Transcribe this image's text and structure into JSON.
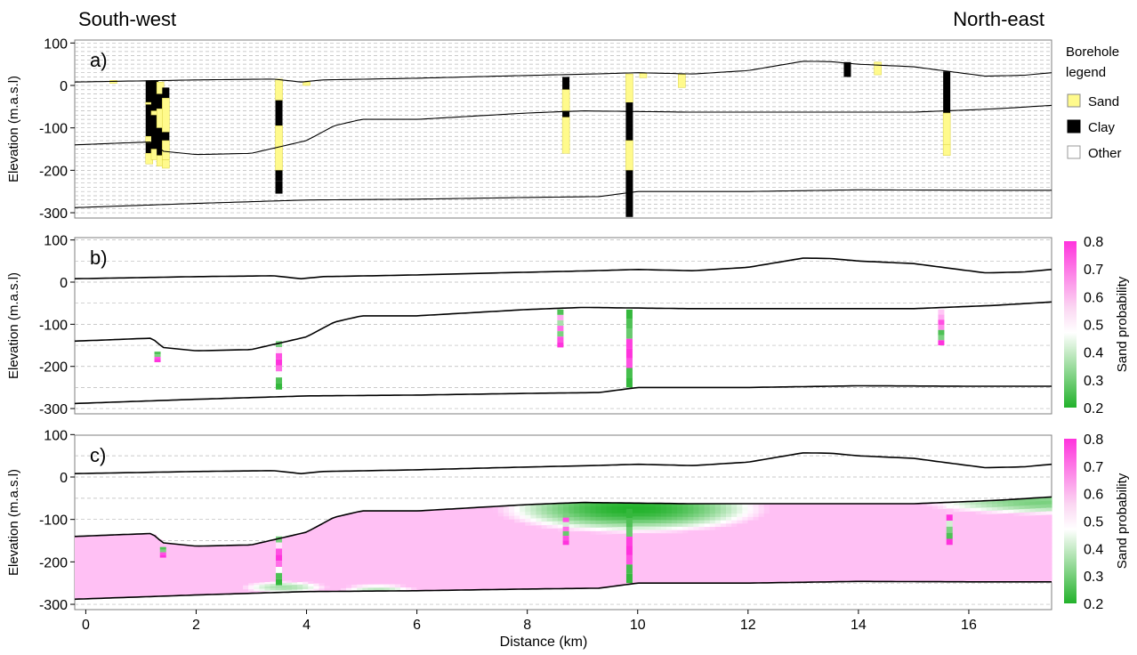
{
  "header": {
    "left": "South-west",
    "right": "North-east"
  },
  "chart_data": {
    "type": "cross-section",
    "xlabel": "Distance (km)",
    "ylabel": "Elevation (m.a.s.l)",
    "x_ticks": [
      0,
      2,
      4,
      6,
      8,
      10,
      12,
      14,
      16
    ],
    "y_ticks": [
      100,
      0,
      -100,
      -200,
      -300
    ],
    "xlim": [
      -0.2,
      17.5
    ],
    "ylim": [
      -310,
      110
    ],
    "panels": [
      {
        "label": "a)"
      },
      {
        "label": "b)"
      },
      {
        "label": "c)"
      }
    ],
    "surfaces": {
      "top": [
        [
          -0.2,
          8
        ],
        [
          2,
          13
        ],
        [
          3.4,
          15
        ],
        [
          3.9,
          8
        ],
        [
          4.3,
          13
        ],
        [
          6,
          17
        ],
        [
          7.5,
          22
        ],
        [
          9.2,
          27
        ],
        [
          10,
          30
        ],
        [
          11,
          27
        ],
        [
          12,
          35
        ],
        [
          12.5,
          46
        ],
        [
          13,
          57
        ],
        [
          13.5,
          56
        ],
        [
          14,
          50
        ],
        [
          15,
          44
        ],
        [
          15.7,
          32
        ],
        [
          16.3,
          22
        ],
        [
          17,
          24
        ],
        [
          17.5,
          30
        ]
      ],
      "middle": [
        [
          -0.2,
          -140
        ],
        [
          1.2,
          -133
        ],
        [
          1.4,
          -155
        ],
        [
          2,
          -163
        ],
        [
          3,
          -160
        ],
        [
          4,
          -130
        ],
        [
          4.5,
          -95
        ],
        [
          5,
          -80
        ],
        [
          6,
          -80
        ],
        [
          8,
          -65
        ],
        [
          9,
          -60
        ],
        [
          11,
          -63
        ],
        [
          13,
          -63
        ],
        [
          15,
          -63
        ],
        [
          16.5,
          -55
        ],
        [
          17.5,
          -47
        ]
      ],
      "bottom": [
        [
          -0.2,
          -288
        ],
        [
          2,
          -278
        ],
        [
          4,
          -270
        ],
        [
          6,
          -268
        ],
        [
          8,
          -264
        ],
        [
          9.3,
          -262
        ],
        [
          10,
          -250
        ],
        [
          12,
          -250
        ],
        [
          14,
          -246
        ],
        [
          16,
          -247
        ],
        [
          17.5,
          -247
        ]
      ]
    },
    "boreholes": [
      {
        "x": 0.5,
        "layers": [
          [
            12,
            5,
            "Sand"
          ]
        ]
      },
      {
        "x": 1.15,
        "layers": [
          [
            12,
            -40,
            "Clay"
          ],
          [
            -40,
            -45,
            "Sand"
          ],
          [
            -45,
            -120,
            "Clay"
          ],
          [
            -120,
            -135,
            "Sand"
          ],
          [
            -135,
            -160,
            "Clay"
          ],
          [
            -160,
            -185,
            "Sand"
          ]
        ]
      },
      {
        "x": 1.25,
        "layers": [
          [
            12,
            -60,
            "Clay"
          ],
          [
            -60,
            -70,
            "Sand"
          ],
          [
            -70,
            -150,
            "Clay"
          ],
          [
            -150,
            -175,
            "Sand"
          ]
        ]
      },
      {
        "x": 1.35,
        "layers": [
          [
            8,
            -20,
            "Sand"
          ],
          [
            -20,
            -55,
            "Clay"
          ],
          [
            -55,
            -100,
            "Sand"
          ],
          [
            -100,
            -165,
            "Clay"
          ],
          [
            -165,
            -190,
            "Sand"
          ]
        ]
      },
      {
        "x": 1.45,
        "layers": [
          [
            -5,
            -30,
            "Clay"
          ],
          [
            -30,
            -110,
            "Sand"
          ],
          [
            -110,
            -130,
            "Clay"
          ],
          [
            -130,
            -175,
            "Sand"
          ],
          [
            -175,
            -195,
            "Sand"
          ]
        ]
      },
      {
        "x": 3.5,
        "layers": [
          [
            15,
            -35,
            "Sand"
          ],
          [
            -35,
            -95,
            "Clay"
          ],
          [
            -95,
            -200,
            "Sand"
          ],
          [
            -200,
            -225,
            "Clay"
          ],
          [
            -225,
            -255,
            "Clay"
          ]
        ]
      },
      {
        "x": 4.0,
        "layers": [
          [
            8,
            0,
            "Sand"
          ]
        ]
      },
      {
        "x": 8.7,
        "layers": [
          [
            20,
            -10,
            "Clay"
          ],
          [
            -10,
            -60,
            "Sand"
          ],
          [
            -60,
            -75,
            "Clay"
          ],
          [
            -75,
            -160,
            "Sand"
          ]
        ]
      },
      {
        "x": 9.85,
        "layers": [
          [
            27,
            -40,
            "Sand"
          ],
          [
            -40,
            -130,
            "Clay"
          ],
          [
            -130,
            -200,
            "Sand"
          ],
          [
            -200,
            -310,
            "Clay"
          ]
        ]
      },
      {
        "x": 10.1,
        "layers": [
          [
            28,
            18,
            "Sand"
          ]
        ]
      },
      {
        "x": 10.8,
        "layers": [
          [
            26,
            -5,
            "Sand"
          ]
        ]
      },
      {
        "x": 13.8,
        "layers": [
          [
            55,
            20,
            "Clay"
          ]
        ]
      },
      {
        "x": 14.35,
        "layers": [
          [
            55,
            25,
            "Sand"
          ]
        ]
      },
      {
        "x": 15.6,
        "layers": [
          [
            33,
            -65,
            "Clay"
          ],
          [
            -65,
            -140,
            "Sand"
          ],
          [
            -140,
            -165,
            "Sand"
          ]
        ]
      }
    ],
    "legend_a": {
      "title_line1": "Borehole",
      "title_line2": "legend",
      "items": [
        {
          "label": "Sand",
          "color": "#fffa8c"
        },
        {
          "label": "Clay",
          "color": "#000000"
        },
        {
          "label": "Other",
          "color": "#ffffff"
        }
      ]
    },
    "colorbar": {
      "label": "Sand probability",
      "ticks": [
        0.8,
        0.7,
        0.6,
        0.5,
        0.4,
        0.3,
        0.2
      ],
      "range": [
        0.2,
        0.8
      ],
      "low_color": "#22b22b",
      "mid_color": "#ffffff",
      "high_color": "#ff33dd"
    },
    "probability_logs_b": [
      {
        "x": 1.3,
        "top": -165,
        "bottom": -190,
        "values": [
          0.25,
          0.3,
          0.75,
          0.8
        ]
      },
      {
        "x": 3.5,
        "top": -140,
        "bottom": -255,
        "values": [
          0.3,
          0.5,
          0.75,
          0.8,
          0.7,
          0.45,
          0.25,
          0.22
        ]
      },
      {
        "x": 8.6,
        "top": -65,
        "bottom": -155,
        "values": [
          0.25,
          0.6,
          0.35,
          0.7,
          0.3,
          0.75,
          0.8
        ]
      },
      {
        "x": 9.85,
        "top": -65,
        "bottom": -250,
        "values": [
          0.22,
          0.25,
          0.28,
          0.78,
          0.8,
          0.75,
          0.24,
          0.22
        ]
      },
      {
        "x": 15.5,
        "top": -65,
        "bottom": -150,
        "values": [
          0.55,
          0.6,
          0.75,
          0.65,
          0.25,
          0.3,
          0.8
        ]
      }
    ],
    "probability_logs_c": [
      {
        "x": 1.4,
        "top": -165,
        "bottom": -190,
        "values": [
          0.25,
          0.3,
          0.75,
          0.8
        ]
      },
      {
        "x": 3.5,
        "top": -140,
        "bottom": -255,
        "values": [
          0.3,
          0.5,
          0.75,
          0.8,
          0.7,
          0.45,
          0.25,
          0.22
        ]
      },
      {
        "x": 8.7,
        "top": -85,
        "bottom": -160,
        "values": [
          0.3,
          0.75,
          0.4,
          0.7,
          0.28,
          0.75,
          0.8
        ]
      },
      {
        "x": 9.85,
        "top": -75,
        "bottom": -250,
        "values": [
          0.22,
          0.25,
          0.28,
          0.78,
          0.8,
          0.75,
          0.24,
          0.22
        ]
      },
      {
        "x": 15.65,
        "top": -60,
        "bottom": -160,
        "values": [
          0.45,
          0.55,
          0.8,
          0.4,
          0.3,
          0.25,
          0.8
        ]
      }
    ],
    "field_c": {
      "background_value": 0.56,
      "green_zones": [
        {
          "x_center": 9.9,
          "y_center": -75,
          "x_radius": 2.5,
          "y_radius": 60,
          "value": 0.2
        },
        {
          "x_center": 17.3,
          "y_center": -60,
          "x_radius": 2.2,
          "y_radius": 30,
          "value": 0.3
        },
        {
          "x_center": 3.6,
          "y_center": -260,
          "x_radius": 0.8,
          "y_radius": 15,
          "value": 0.35
        },
        {
          "x_center": 5.3,
          "y_center": -265,
          "x_radius": 0.7,
          "y_radius": 12,
          "value": 0.38
        }
      ]
    }
  }
}
